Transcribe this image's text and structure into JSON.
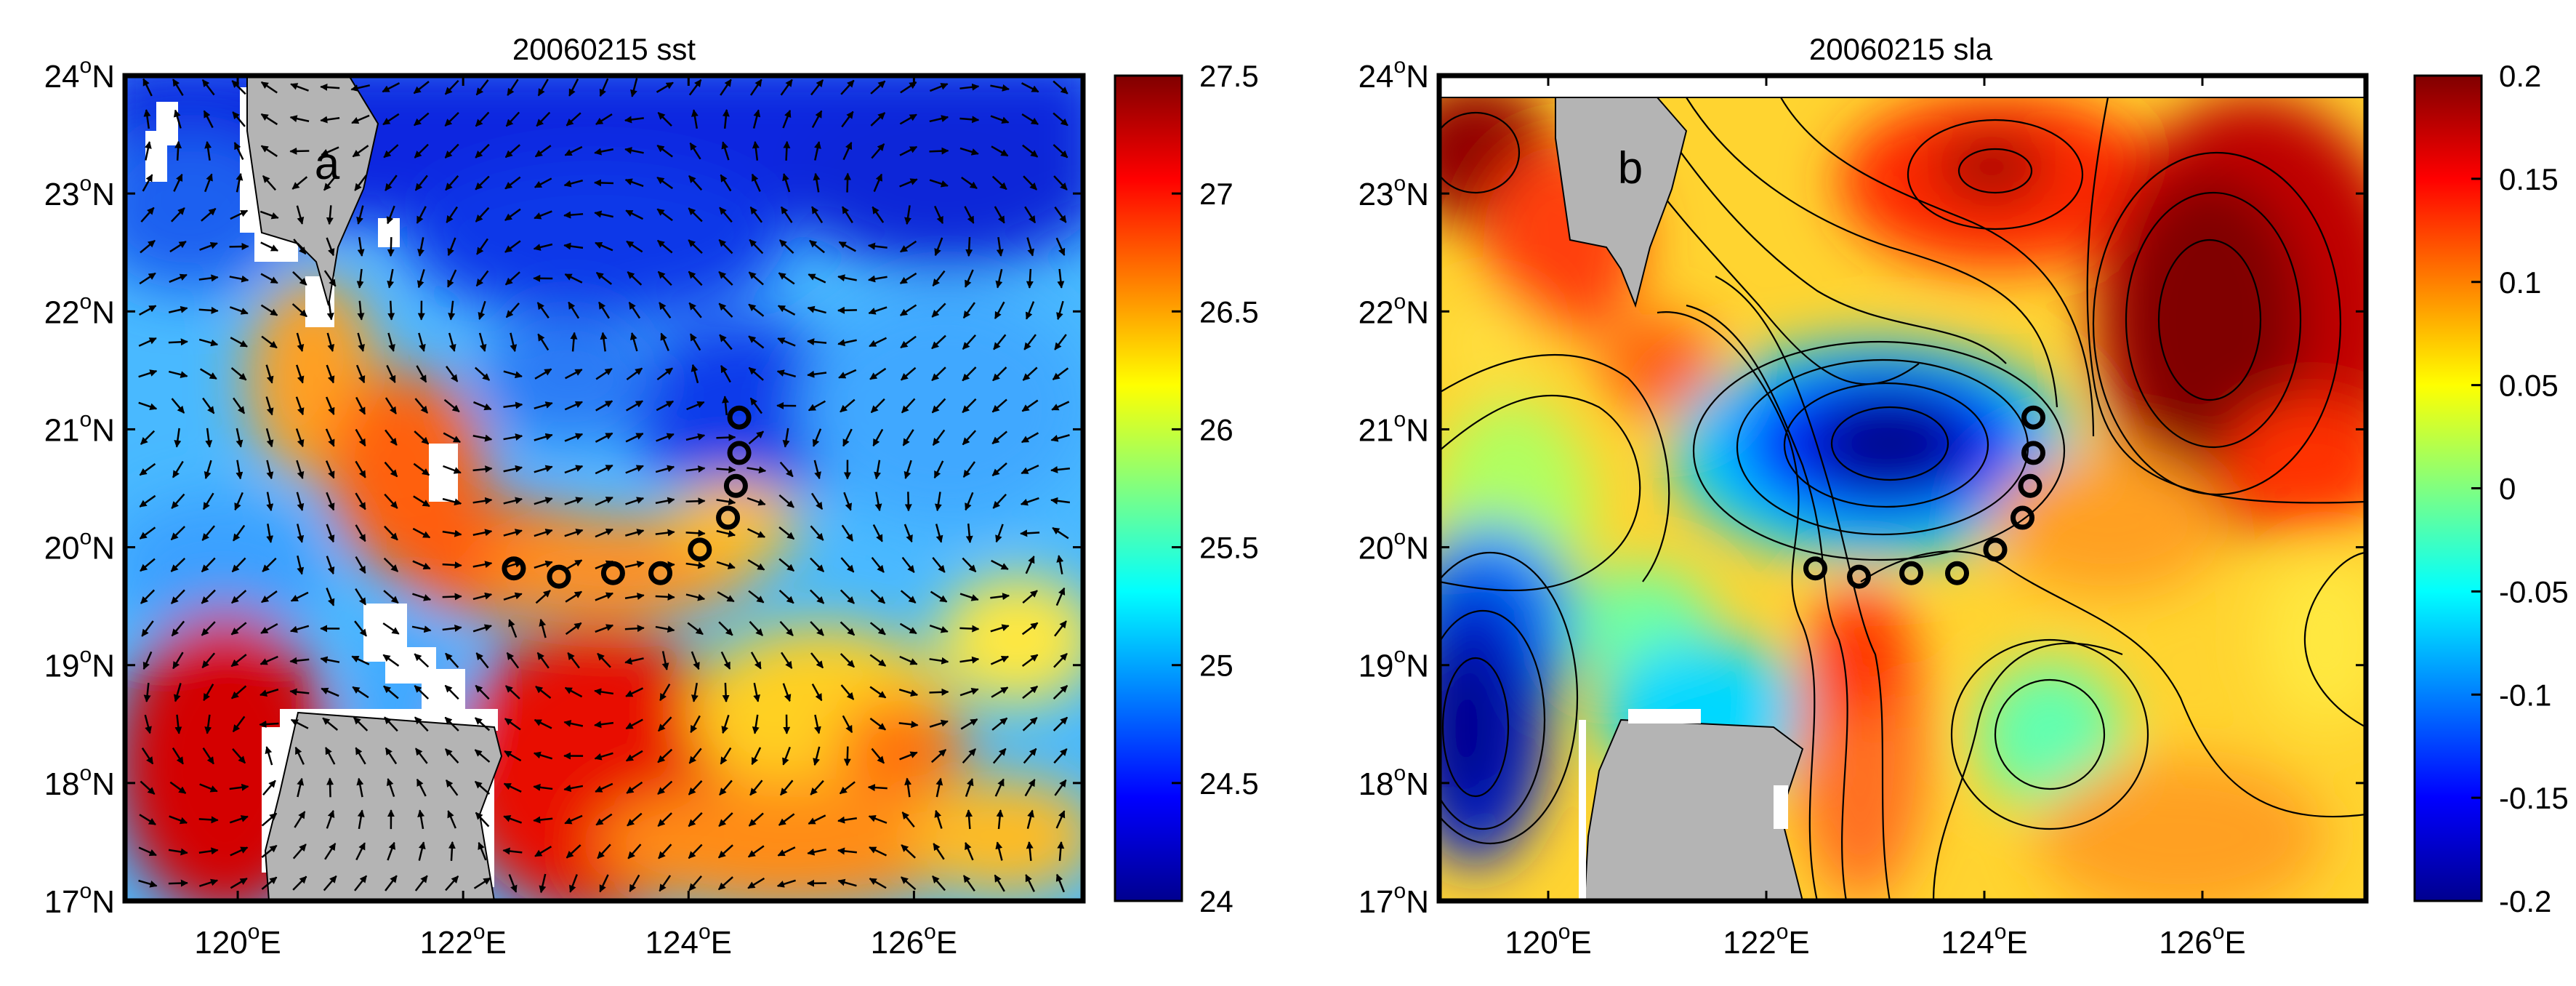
{
  "panels": [
    {
      "id": "sst",
      "title": "20060215 sst",
      "letter": "a",
      "colorbar": {
        "min": 24,
        "max": 27.5,
        "ticks": [
          "27.5",
          "27",
          "26.5",
          "26",
          "25.5",
          "25",
          "24.5",
          "24"
        ]
      },
      "contours": false,
      "vectors": true
    },
    {
      "id": "sla",
      "title": "20060215 sla",
      "letter": "b",
      "colorbar": {
        "min": -0.2,
        "max": 0.2,
        "ticks": [
          "0.2",
          "0.15",
          "0.1",
          "0.05",
          "0",
          "-0.05",
          "-0.1",
          "-0.15",
          "-0.2"
        ]
      },
      "contours": true,
      "vectors": false
    }
  ],
  "axes": {
    "lon_range": [
      119,
      127.5
    ],
    "lat_range": [
      17,
      24
    ],
    "lon_ticks": [
      120,
      122,
      124,
      126
    ],
    "lat_ticks": [
      17,
      18,
      19,
      20,
      21,
      22,
      23,
      24
    ],
    "lon_labels": [
      "120",
      "122",
      "124",
      "126"
    ],
    "lat_labels": [
      "17",
      "18",
      "19",
      "20",
      "21",
      "22",
      "23",
      "24"
    ],
    "lon_suffix": "E",
    "lat_suffix": "N",
    "degree_mark": "o"
  },
  "stations": [
    {
      "lon": 124.45,
      "lat": 21.1
    },
    {
      "lon": 124.45,
      "lat": 20.8
    },
    {
      "lon": 124.42,
      "lat": 20.52
    },
    {
      "lon": 124.35,
      "lat": 20.25
    },
    {
      "lon": 124.1,
      "lat": 19.98
    },
    {
      "lon": 123.75,
      "lat": 19.78
    },
    {
      "lon": 123.33,
      "lat": 19.78
    },
    {
      "lon": 122.85,
      "lat": 19.75
    },
    {
      "lon": 122.45,
      "lat": 19.82
    }
  ],
  "colors": {
    "land": "#b4b4b4",
    "marker": "#000000"
  }
}
